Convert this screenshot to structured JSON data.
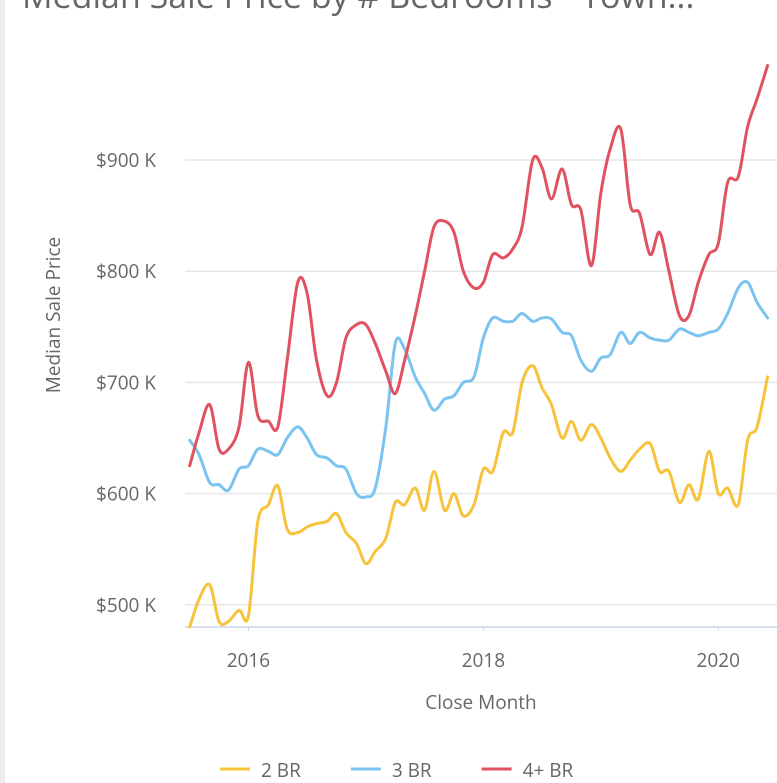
{
  "chart_data": {
    "type": "line",
    "title": "Median Sale Price by # Bedrooms - Town...",
    "y_label": "Median Sale Price",
    "x_label": "Close Month",
    "xlim": [
      2015.46,
      2020.5
    ],
    "xticks": [
      2016,
      2018,
      2020
    ],
    "ylim": [
      480000,
      990000
    ],
    "yticks": [
      {
        "value": 500000,
        "label": "$500 K"
      },
      {
        "value": 600000,
        "label": "$600 K"
      },
      {
        "value": 700000,
        "label": "$700 K"
      },
      {
        "value": 800000,
        "label": "$800 K"
      },
      {
        "value": 900000,
        "label": "$900 K"
      }
    ],
    "grid": true,
    "legend": "bottom",
    "x": [
      2015.5,
      2015.58,
      2015.67,
      2015.75,
      2015.83,
      2015.92,
      2016,
      2016.08,
      2016.17,
      2016.25,
      2016.33,
      2016.42,
      2016.5,
      2016.58,
      2016.67,
      2016.75,
      2016.83,
      2016.92,
      2017,
      2017.08,
      2017.17,
      2017.25,
      2017.33,
      2017.42,
      2017.5,
      2017.58,
      2017.67,
      2017.75,
      2017.83,
      2017.92,
      2018,
      2018.08,
      2018.17,
      2018.25,
      2018.33,
      2018.42,
      2018.5,
      2018.58,
      2018.67,
      2018.75,
      2018.83,
      2018.92,
      2019,
      2019.08,
      2019.17,
      2019.25,
      2019.33,
      2019.42,
      2019.5,
      2019.58,
      2019.67,
      2019.75,
      2019.83,
      2019.92,
      2020,
      2020.08,
      2020.17,
      2020.25,
      2020.33,
      2020.42
    ],
    "series": [
      {
        "name": "2 BR",
        "color": "#f7c33c",
        "values": [
          480000,
          505000,
          518000,
          485000,
          485000,
          495000,
          490000,
          575000,
          590000,
          607000,
          568000,
          565000,
          570000,
          573000,
          575000,
          582000,
          565000,
          555000,
          537000,
          548000,
          560000,
          592000,
          590000,
          605000,
          585000,
          620000,
          585000,
          600000,
          580000,
          590000,
          622000,
          620000,
          655000,
          655000,
          700000,
          715000,
          695000,
          680000,
          650000,
          665000,
          648000,
          662000,
          650000,
          632000,
          620000,
          630000,
          640000,
          645000,
          620000,
          620000,
          592000,
          608000,
          595000,
          638000,
          600000,
          605000,
          590000,
          648000,
          660000,
          705000
        ]
      },
      {
        "name": "3 BR",
        "color": "#7cc4f0",
        "values": [
          648000,
          635000,
          610000,
          608000,
          603000,
          622000,
          625000,
          640000,
          638000,
          635000,
          650000,
          660000,
          650000,
          635000,
          632000,
          625000,
          622000,
          600000,
          597000,
          605000,
          660000,
          735000,
          730000,
          705000,
          690000,
          675000,
          685000,
          688000,
          700000,
          705000,
          740000,
          758000,
          755000,
          755000,
          762000,
          755000,
          758000,
          757000,
          745000,
          742000,
          720000,
          710000,
          722000,
          725000,
          745000,
          735000,
          745000,
          740000,
          738000,
          738000,
          748000,
          745000,
          742000,
          745000,
          748000,
          762000,
          785000,
          790000,
          772000,
          758000
        ]
      },
      {
        "name": "4+ BR",
        "color": "#e0525f",
        "values": [
          625000,
          655000,
          680000,
          640000,
          640000,
          660000,
          718000,
          670000,
          665000,
          660000,
          720000,
          790000,
          780000,
          720000,
          688000,
          700000,
          740000,
          752000,
          752000,
          735000,
          710000,
          690000,
          720000,
          760000,
          800000,
          840000,
          845000,
          835000,
          800000,
          785000,
          790000,
          815000,
          812000,
          820000,
          840000,
          900000,
          893000,
          865000,
          892000,
          860000,
          855000,
          805000,
          870000,
          910000,
          928000,
          860000,
          852000,
          815000,
          835000,
          800000,
          760000,
          760000,
          790000,
          815000,
          825000,
          880000,
          885000,
          930000,
          955000,
          985000
        ]
      }
    ]
  }
}
